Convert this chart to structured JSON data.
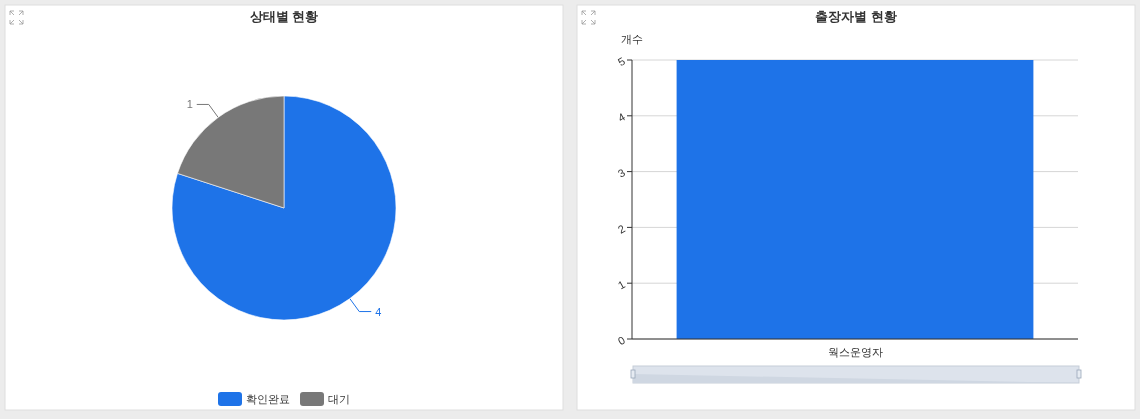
{
  "chart_data": [
    {
      "type": "pie",
      "title": "상태별 현황",
      "categories": [
        "확인완료",
        "대기"
      ],
      "values": [
        4,
        1
      ],
      "colors": [
        "#1e73e8",
        "#787878"
      ],
      "legend": "bottom",
      "data_labels": true
    },
    {
      "type": "bar",
      "title": "출장자별 현황",
      "ylabel": "개수",
      "categories": [
        "웍스운영자"
      ],
      "values": [
        5
      ],
      "color": "#1e73e8",
      "ylim": [
        0,
        5
      ],
      "yticks": [
        0,
        1,
        2,
        3,
        4,
        5
      ],
      "grid": "y"
    }
  ]
}
